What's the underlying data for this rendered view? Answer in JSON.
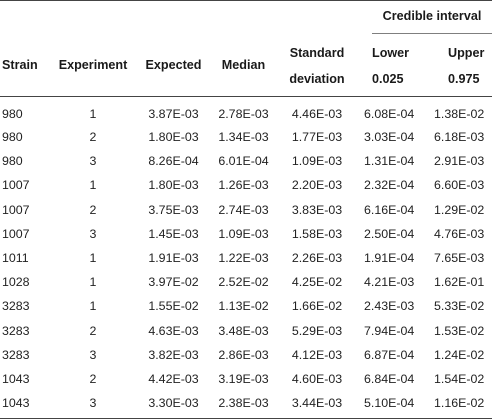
{
  "table": {
    "group_header": "Credible interval",
    "headers": {
      "strain": "Strain",
      "experiment": "Experiment",
      "expected": "Expected",
      "median": "Median",
      "sd_line1": "Standard",
      "sd_line2": "deviation",
      "lower_line1": "Lower",
      "lower_line2": "0.025",
      "upper_line1": "Upper",
      "upper_line2": "0.975"
    },
    "rows": [
      [
        "980",
        "1",
        "3.87E-03",
        "2.78E-03",
        "4.46E-03",
        "6.08E-04",
        "1.38E-02"
      ],
      [
        "980",
        "2",
        "1.80E-03",
        "1.34E-03",
        "1.77E-03",
        "3.03E-04",
        "6.18E-03"
      ],
      [
        "980",
        "3",
        "8.26E-04",
        "6.01E-04",
        "1.09E-03",
        "1.31E-04",
        "2.91E-03"
      ],
      [
        "1007",
        "1",
        "1.80E-03",
        "1.26E-03",
        "2.20E-03",
        "2.32E-04",
        "6.60E-03"
      ],
      [
        "1007",
        "2",
        "3.75E-03",
        "2.74E-03",
        "3.83E-03",
        "6.16E-04",
        "1.29E-02"
      ],
      [
        "1007",
        "3",
        "1.45E-03",
        "1.09E-03",
        "1.58E-03",
        "2.50E-04",
        "4.76E-03"
      ],
      [
        "1011",
        "1",
        "1.91E-03",
        "1.22E-03",
        "2.26E-03",
        "1.91E-04",
        "7.65E-03"
      ],
      [
        "1028",
        "1",
        "3.97E-02",
        "2.52E-02",
        "4.25E-02",
        "4.21E-03",
        "1.62E-01"
      ],
      [
        "3283",
        "1",
        "1.55E-02",
        "1.13E-02",
        "1.66E-02",
        "2.43E-03",
        "5.33E-02"
      ],
      [
        "3283",
        "2",
        "4.63E-03",
        "3.48E-03",
        "5.29E-03",
        "7.94E-04",
        "1.53E-02"
      ],
      [
        "3283",
        "3",
        "3.82E-03",
        "2.86E-03",
        "4.12E-03",
        "6.87E-04",
        "1.24E-02"
      ],
      [
        "1043",
        "2",
        "4.42E-03",
        "3.19E-03",
        "4.60E-03",
        "6.84E-04",
        "1.54E-02"
      ],
      [
        "1043",
        "3",
        "3.30E-03",
        "2.38E-03",
        "3.44E-03",
        "5.10E-04",
        "1.16E-02"
      ]
    ]
  }
}
